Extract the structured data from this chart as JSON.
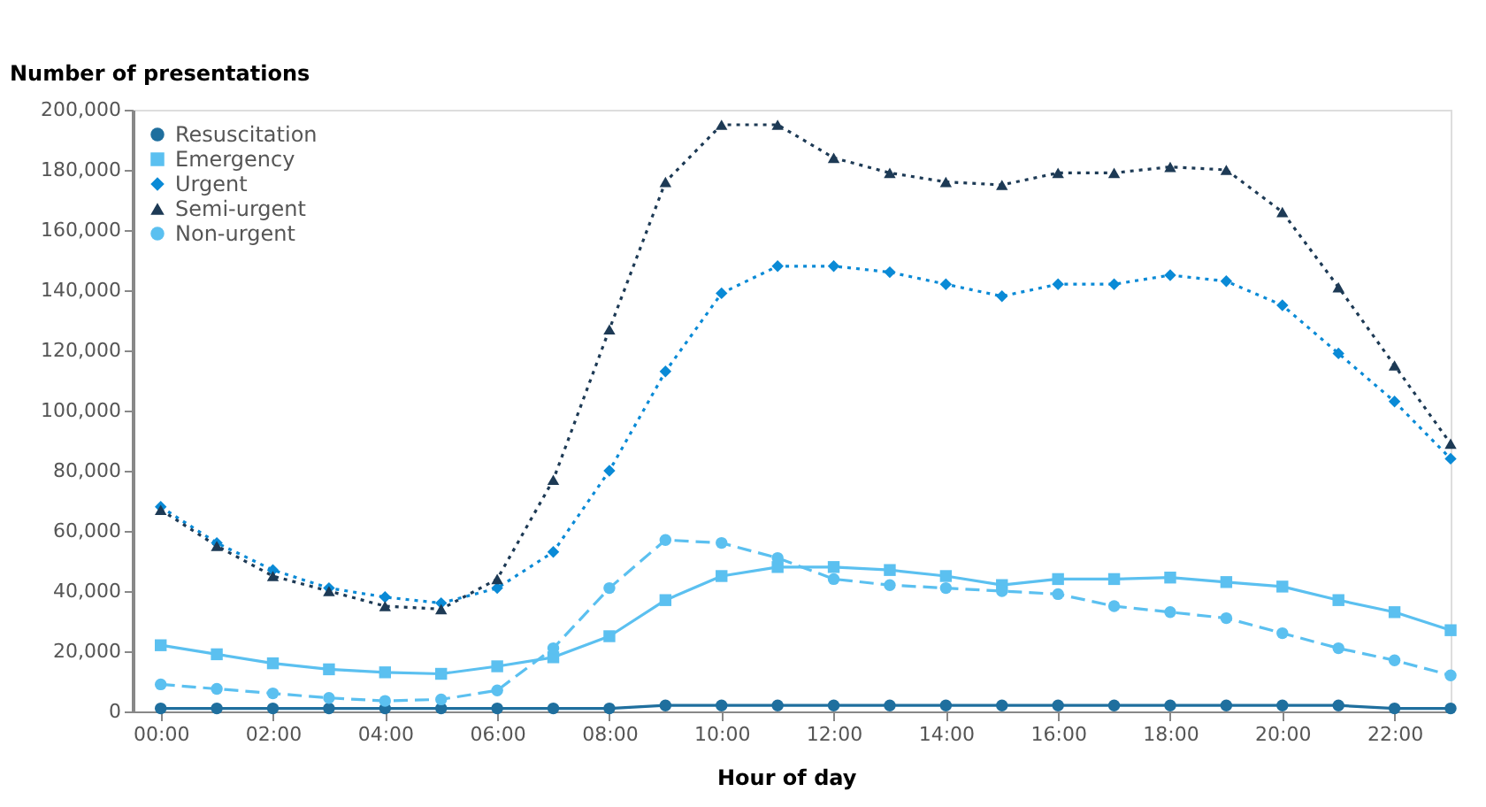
{
  "chart_data": {
    "type": "line",
    "xlabel": "Hour of day",
    "ylabel": "Number of presentations",
    "x": [
      0,
      1,
      2,
      3,
      4,
      5,
      6,
      7,
      8,
      9,
      10,
      11,
      12,
      13,
      14,
      15,
      16,
      17,
      18,
      19,
      20,
      21,
      22,
      23
    ],
    "xlim": [
      -0.5,
      23
    ],
    "xticks": [
      {
        "value": 0,
        "label": "00:00"
      },
      {
        "value": 2,
        "label": "02:00"
      },
      {
        "value": 4,
        "label": "04:00"
      },
      {
        "value": 6,
        "label": "06:00"
      },
      {
        "value": 8,
        "label": "08:00"
      },
      {
        "value": 10,
        "label": "10:00"
      },
      {
        "value": 12,
        "label": "12:00"
      },
      {
        "value": 14,
        "label": "14:00"
      },
      {
        "value": 16,
        "label": "16:00"
      },
      {
        "value": 18,
        "label": "18:00"
      },
      {
        "value": 20,
        "label": "20:00"
      },
      {
        "value": 22,
        "label": "22:00"
      }
    ],
    "ylim": [
      0,
      200000
    ],
    "yticks": [
      0,
      {
        "value": 20000,
        "label": "20,000"
      },
      {
        "value": 40000,
        "label": "40,000"
      },
      {
        "value": 60000,
        "label": "60,000"
      },
      {
        "value": 80000,
        "label": "80,000"
      },
      {
        "value": 100000,
        "label": "100,000"
      },
      {
        "value": 120000,
        "label": "120,000"
      },
      {
        "value": 140000,
        "label": "140,000"
      },
      {
        "value": 160000,
        "label": "160,000"
      },
      {
        "value": 180000,
        "label": "180,000"
      },
      {
        "value": 200000,
        "label": "200,000"
      }
    ],
    "grid": false,
    "legend": "top left",
    "series": [
      {
        "name": "Resuscitation",
        "color": "#1f6f9e",
        "marker": "circle",
        "line_style": "solid",
        "values": [
          1000,
          1000,
          1000,
          1000,
          1000,
          1000,
          1000,
          1000,
          1000,
          2000,
          2000,
          2000,
          2000,
          2000,
          2000,
          2000,
          2000,
          2000,
          2000,
          2000,
          2000,
          2000,
          1000,
          1000
        ]
      },
      {
        "name": "Emergency",
        "color": "#5bc0f0",
        "marker": "square",
        "line_style": "solid",
        "values": [
          22000,
          19000,
          16000,
          14000,
          13000,
          12500,
          15000,
          18000,
          25000,
          37000,
          45000,
          48000,
          48000,
          47000,
          45000,
          42000,
          44000,
          44000,
          44500,
          43000,
          41500,
          37000,
          33000,
          27000
        ]
      },
      {
        "name": "Urgent",
        "color": "#0a8ad6",
        "marker": "diamond",
        "line_style": "dotted",
        "values": [
          68000,
          56000,
          47000,
          41000,
          38000,
          36000,
          41000,
          53000,
          80000,
          113000,
          139000,
          148000,
          148000,
          146000,
          142000,
          138000,
          142000,
          142000,
          145000,
          143000,
          135000,
          119000,
          103000,
          84000
        ]
      },
      {
        "name": "Semi-urgent",
        "color": "#1d3a55",
        "marker": "triangle",
        "line_style": "dotted",
        "values": [
          67000,
          55000,
          45000,
          40000,
          35000,
          34000,
          44000,
          77000,
          127000,
          176000,
          195000,
          195000,
          184000,
          179000,
          176000,
          175000,
          179000,
          179000,
          181000,
          180000,
          166000,
          141000,
          115000,
          89000
        ]
      },
      {
        "name": "Non-urgent",
        "color": "#5bc0f0",
        "marker": "circle",
        "line_style": "dashed",
        "values": [
          9000,
          7500,
          6000,
          4500,
          3500,
          4000,
          7000,
          21000,
          41000,
          57000,
          56000,
          51000,
          44000,
          42000,
          41000,
          40000,
          39000,
          35000,
          33000,
          31000,
          26000,
          21000,
          17000,
          12000
        ]
      }
    ]
  }
}
